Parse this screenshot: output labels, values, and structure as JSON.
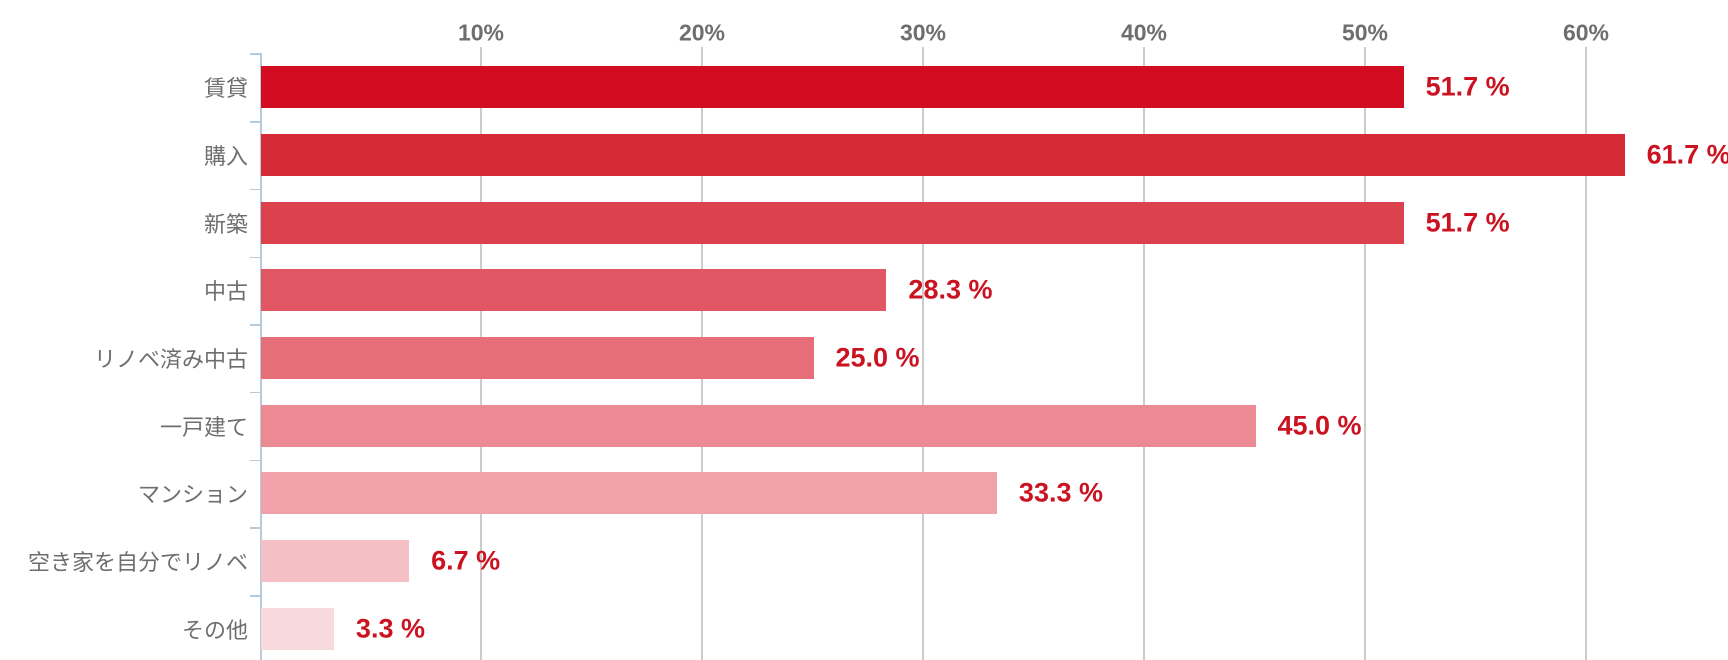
{
  "chart_data": {
    "type": "bar",
    "orientation": "horizontal",
    "title": "",
    "xlabel": "",
    "ylabel": "",
    "xlim": [
      0,
      66.4
    ],
    "grid": true,
    "legend": false,
    "categories": [
      "賃貸",
      "購入",
      "新築",
      "中古",
      "リノベ済み中古",
      "一戸建て",
      "マンション",
      "空き家を自分でリノベ",
      "その他"
    ],
    "values": [
      51.7,
      61.7,
      51.7,
      28.3,
      25.0,
      45.0,
      33.3,
      6.7,
      3.3
    ],
    "value_labels": [
      "51.7 %",
      "61.7 %",
      "51.7 %",
      "28.3 %",
      "25.0 %",
      "45.0 %",
      "33.3 %",
      "6.7 %",
      "3.3 %"
    ],
    "bar_colors": [
      "#d20d21",
      "#d62b36",
      "#db424e",
      "#e15663",
      "#e66e79",
      "#ec8a94",
      "#f0a1a9",
      "#f4bfc5",
      "#f8d9dc"
    ],
    "x_tick_labels": [
      "10%",
      "20%",
      "30%",
      "40%",
      "50%",
      "60%"
    ],
    "x_tick_values": [
      10,
      20,
      30,
      40,
      50,
      60
    ],
    "colors": {
      "grid_line": "#cccccc",
      "axis_line": "#b3cbdd",
      "x_tick_label": "#6e6e6e",
      "category_label": "#6e6e6e",
      "value_label": "#cb1221",
      "background": "#ffffff"
    }
  }
}
